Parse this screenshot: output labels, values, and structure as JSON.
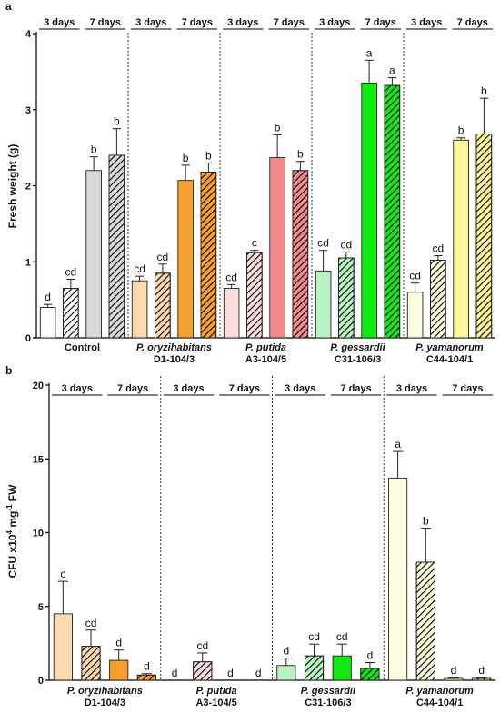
{
  "chart_data": [
    {
      "type": "bar",
      "panel_label": "a",
      "ylabel": "Fresh weight (g)",
      "ylim": [
        0,
        4
      ],
      "yticks": [
        0,
        1,
        2,
        3,
        4
      ],
      "period_labels": [
        "3 days",
        "7 days"
      ],
      "groups": [
        {
          "name": "Control",
          "strain": "",
          "color": "#d9d9d9",
          "light": "#ffffff",
          "values": [
            0.4,
            0.65,
            2.2,
            2.4
          ],
          "errors": [
            0.04,
            0.12,
            0.18,
            0.35
          ],
          "letters": [
            "d",
            "cd",
            "b",
            "b"
          ]
        },
        {
          "name": "P. oryzihabitans",
          "strain": "D1-104/3",
          "color": "#f7a030",
          "light": "#fdd9b0",
          "values": [
            0.75,
            0.85,
            2.07,
            2.18
          ],
          "errors": [
            0.06,
            0.12,
            0.2,
            0.12
          ],
          "letters": [
            "cd",
            "cd",
            "b",
            "b"
          ]
        },
        {
          "name": "P. putida",
          "strain": "A3-104/5",
          "color": "#f38a8a",
          "light": "#fcdede",
          "values": [
            0.65,
            1.12,
            2.37,
            2.2
          ],
          "errors": [
            0.05,
            0.03,
            0.3,
            0.12
          ],
          "letters": [
            "cd",
            "c",
            "b",
            "b"
          ]
        },
        {
          "name": "P. gessardii",
          "strain": "C31-106/3",
          "color": "#12e812",
          "light": "#b9f3c4",
          "values": [
            0.88,
            1.05,
            3.35,
            3.32
          ],
          "errors": [
            0.27,
            0.08,
            0.3,
            0.1
          ],
          "letters": [
            "cd",
            "cd",
            "a",
            "a"
          ]
        },
        {
          "name": "P. yamanorum",
          "strain": "C44-104/1",
          "color": "#fbf79a",
          "light": "#fefde0",
          "values": [
            0.6,
            1.02,
            2.6,
            2.68
          ],
          "errors": [
            0.12,
            0.06,
            0.03,
            0.47
          ],
          "letters": [
            "cd",
            "cd",
            "b",
            "b"
          ]
        }
      ]
    },
    {
      "type": "bar",
      "panel_label": "b",
      "ylabel": "CFU x10",
      "ylabel_sup1": "4",
      "ylabel_mid": " mg",
      "ylabel_sup2": "-1",
      "ylabel_end": " FW",
      "ylim": [
        0,
        20
      ],
      "yticks": [
        0,
        5,
        10,
        15,
        20
      ],
      "period_labels": [
        "3 days",
        "7 days"
      ],
      "groups": [
        {
          "name": "P. oryzihabitans",
          "strain": "D1-104/3",
          "color": "#f7a030",
          "light": "#fdd9b0",
          "values": [
            4.5,
            2.3,
            1.35,
            0.35
          ],
          "errors": [
            2.2,
            1.1,
            0.7,
            0.1
          ],
          "letters": [
            "c",
            "cd",
            "d",
            "d"
          ]
        },
        {
          "name": "P. putida",
          "strain": "A3-104/5",
          "color": "#f38a8a",
          "light": "#fcdede",
          "values": [
            0,
            1.25,
            0,
            0
          ],
          "errors": [
            0,
            0.6,
            0,
            0
          ],
          "letters": [
            "d",
            "cd",
            "d",
            "d"
          ]
        },
        {
          "name": "P. gessardii",
          "strain": "C31-106/3",
          "color": "#12e812",
          "light": "#b9f3c4",
          "values": [
            1.0,
            1.65,
            1.65,
            0.8
          ],
          "errors": [
            0.5,
            0.8,
            0.8,
            0.4
          ],
          "letters": [
            "d",
            "cd",
            "cd",
            "d"
          ]
        },
        {
          "name": "P. yamanorum",
          "strain": "C44-104/1",
          "color": "#fbf79a",
          "light": "#fefde0",
          "values": [
            13.7,
            8.0,
            0.12,
            0.12
          ],
          "errors": [
            1.8,
            2.3,
            0.05,
            0.05
          ],
          "letters": [
            "a",
            "b",
            "d",
            "d"
          ]
        }
      ]
    }
  ]
}
